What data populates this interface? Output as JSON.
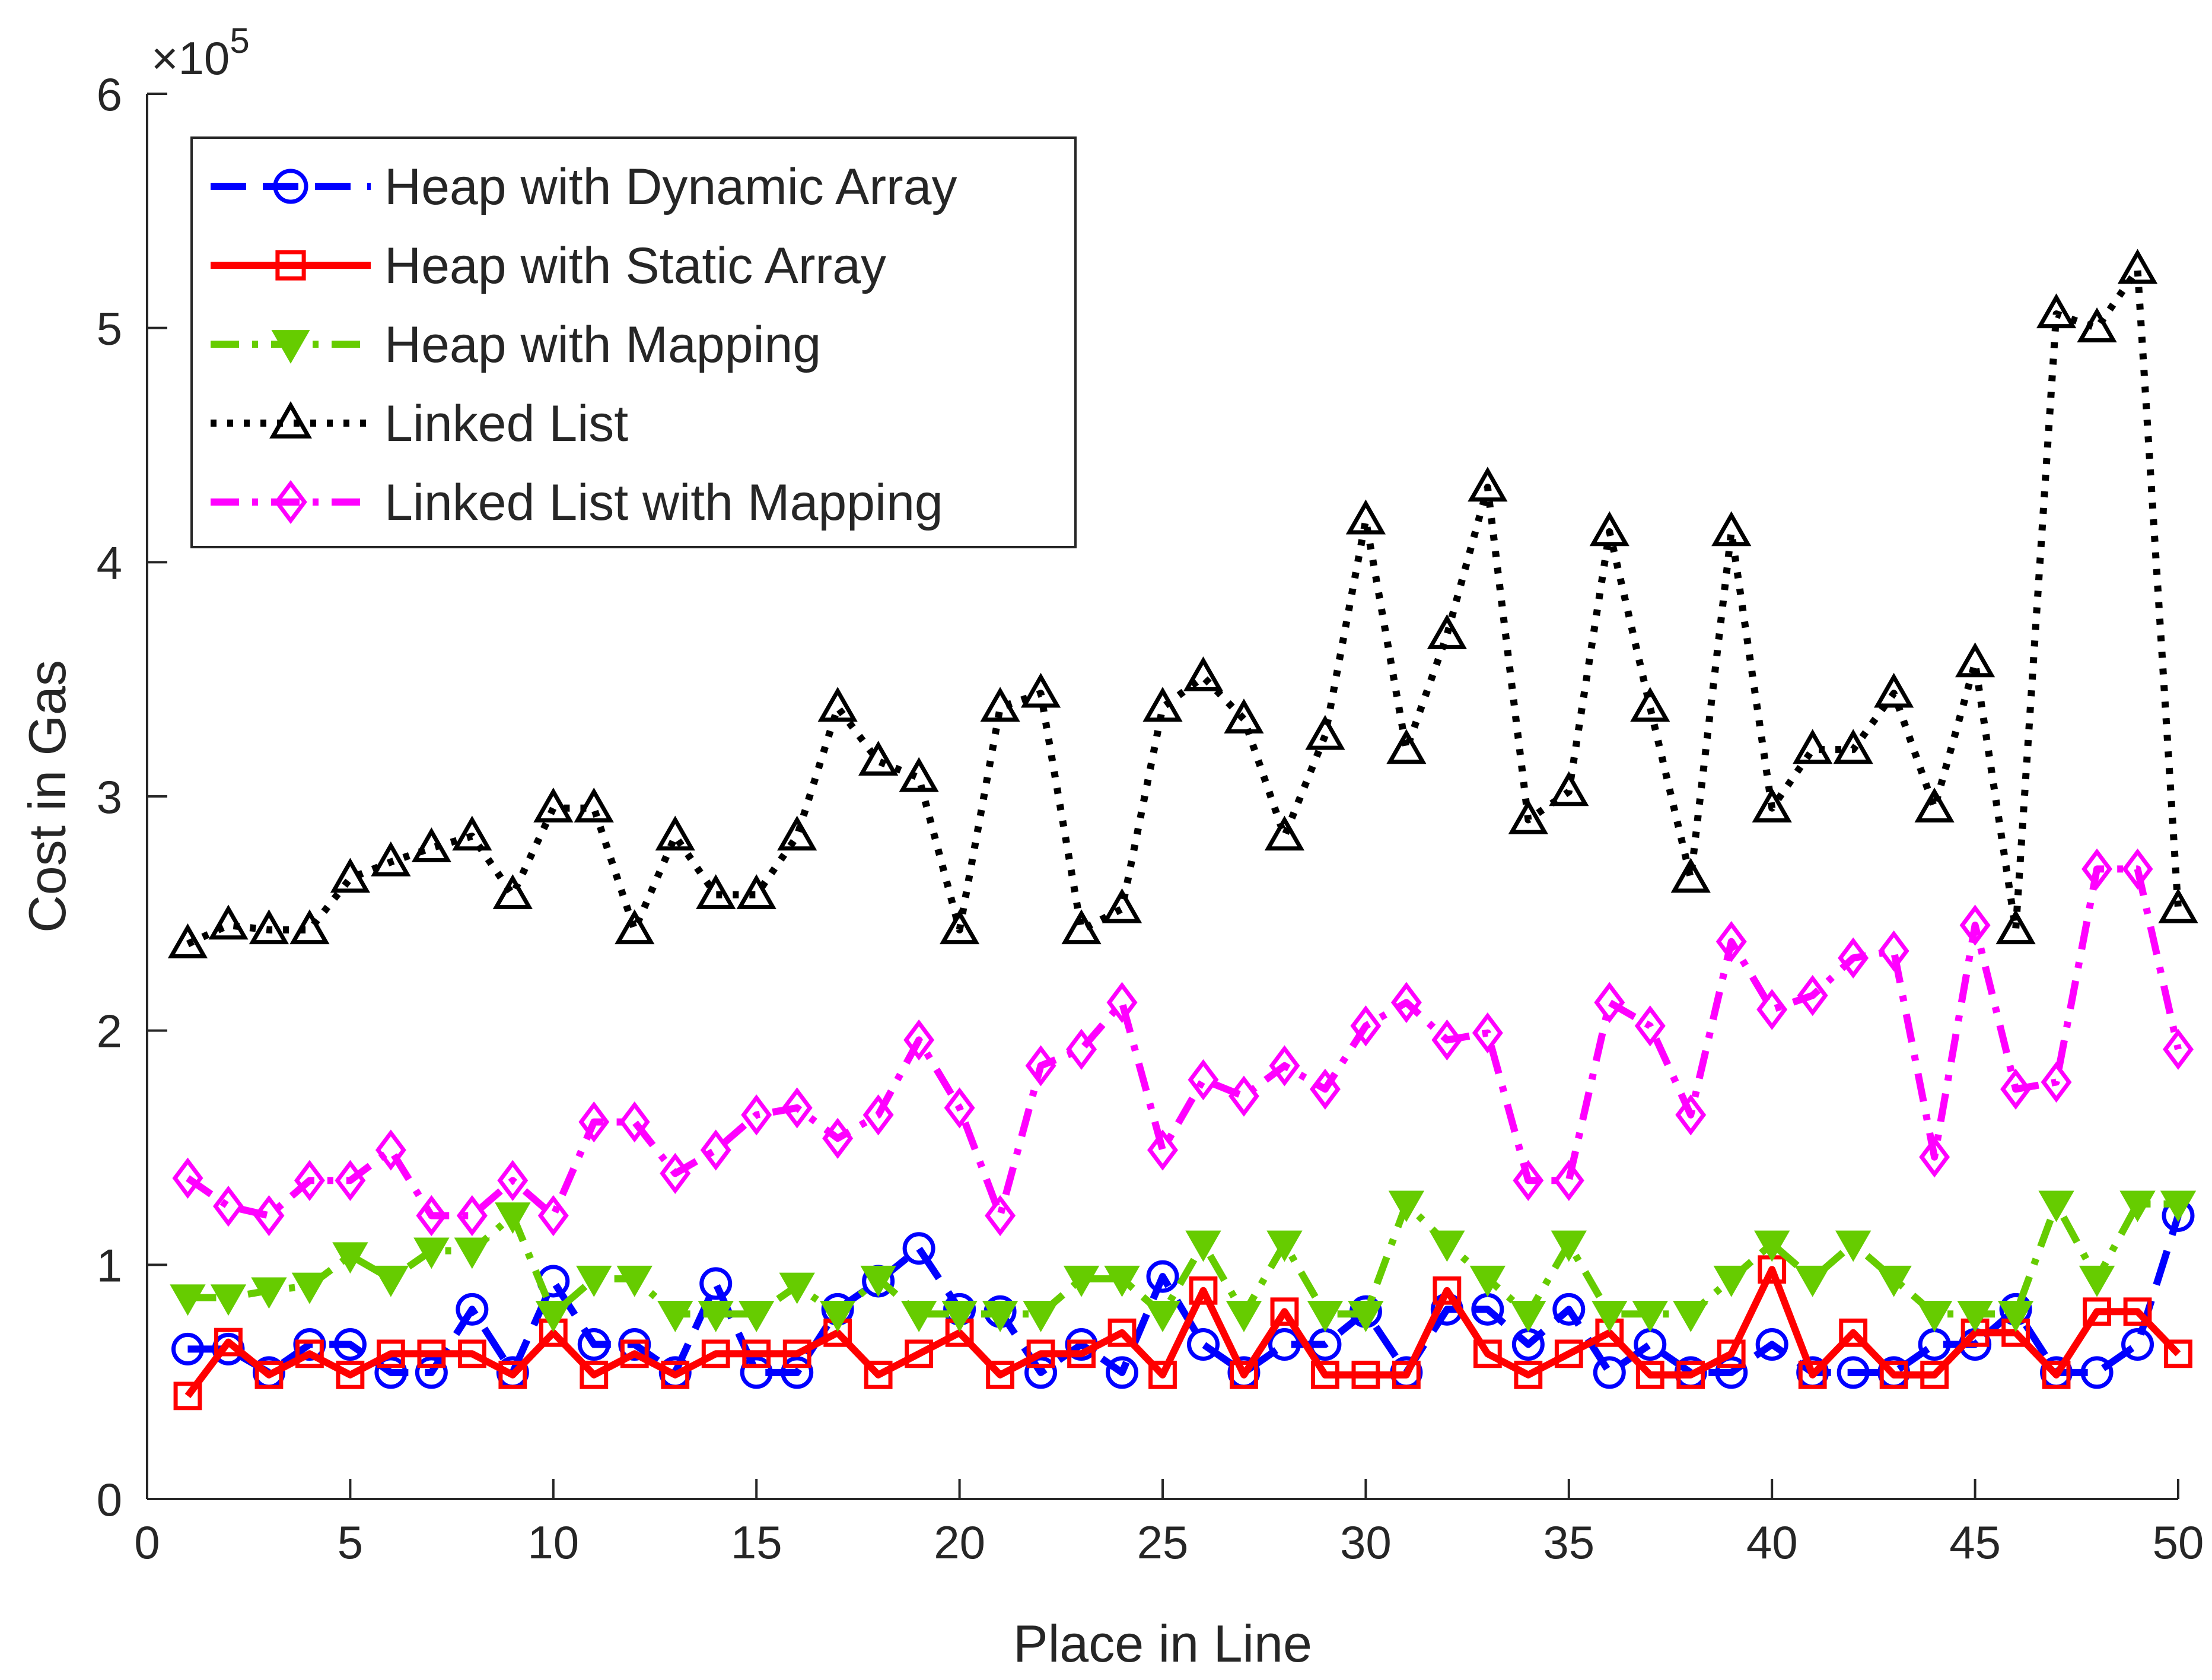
{
  "chart_data": {
    "type": "line",
    "title": "",
    "xlabel": "Place in Line",
    "ylabel": "Cost in Gas",
    "y_exponent_label": "×10",
    "y_exponent_power": "5",
    "xlim": [
      0,
      50
    ],
    "ylim": [
      0,
      600000
    ],
    "x_ticks": [
      0,
      5,
      10,
      15,
      20,
      25,
      30,
      35,
      40,
      45,
      50
    ],
    "y_ticks": [
      0,
      100000,
      200000,
      300000,
      400000,
      500000,
      600000
    ],
    "x_tick_labels": [
      "0",
      "5",
      "10",
      "15",
      "20",
      "25",
      "30",
      "35",
      "40",
      "45",
      "50"
    ],
    "y_tick_labels": [
      "0",
      "1",
      "2",
      "3",
      "4",
      "5",
      "6"
    ],
    "grid": false,
    "legend_position": "top-left",
    "x": [
      1,
      2,
      3,
      4,
      5,
      6,
      7,
      8,
      9,
      10,
      11,
      12,
      13,
      14,
      15,
      16,
      17,
      18,
      19,
      20,
      21,
      22,
      23,
      24,
      25,
      26,
      27,
      28,
      29,
      30,
      31,
      32,
      33,
      34,
      35,
      36,
      37,
      38,
      39,
      40,
      41,
      42,
      43,
      44,
      45,
      46,
      47,
      48,
      49,
      50
    ],
    "series": [
      {
        "name": "Heap with Dynamic Array",
        "color": "#0000ff",
        "line_style": "dashed",
        "marker": "circle",
        "values": [
          64000,
          64000,
          54000,
          66000,
          66000,
          54000,
          54000,
          81000,
          54000,
          93000,
          66000,
          66000,
          54000,
          92000,
          54000,
          54000,
          81000,
          93000,
          107000,
          81000,
          80000,
          54000,
          66000,
          54000,
          95000,
          66000,
          54000,
          66000,
          66000,
          80000,
          54000,
          81000,
          81000,
          66000,
          81000,
          54000,
          66000,
          54000,
          54000,
          66000,
          54000,
          54000,
          54000,
          66000,
          66000,
          81000,
          54000,
          54000,
          66000,
          121000
        ]
      },
      {
        "name": "Heap with Static Array",
        "color": "#ff0000",
        "line_style": "solid",
        "marker": "square",
        "values": [
          44000,
          67000,
          53000,
          62000,
          53000,
          62000,
          62000,
          62000,
          53000,
          71000,
          53000,
          62000,
          53000,
          62000,
          62000,
          62000,
          71000,
          53000,
          62000,
          71000,
          53000,
          62000,
          62000,
          71000,
          53000,
          89000,
          53000,
          80000,
          53000,
          53000,
          53000,
          89000,
          62000,
          53000,
          62000,
          71000,
          53000,
          53000,
          62000,
          98000,
          53000,
          71000,
          53000,
          53000,
          71000,
          71000,
          53000,
          80000,
          80000,
          62000
        ]
      },
      {
        "name": "Heap with Mapping",
        "color": "#66cc00",
        "line_style": "dashdot",
        "marker": "triangle-down",
        "values": [
          86000,
          86000,
          89000,
          91000,
          104000,
          94000,
          106000,
          106000,
          121000,
          79000,
          94000,
          94000,
          79000,
          79000,
          79000,
          91000,
          79000,
          94000,
          79000,
          79000,
          79000,
          79000,
          94000,
          94000,
          79000,
          109000,
          79000,
          109000,
          79000,
          79000,
          126000,
          109000,
          94000,
          79000,
          109000,
          79000,
          79000,
          79000,
          94000,
          109000,
          94000,
          109000,
          94000,
          79000,
          79000,
          79000,
          126000,
          94000,
          126000,
          126000
        ]
      },
      {
        "name": "Linked List",
        "color": "#000000",
        "line_style": "dotted",
        "marker": "triangle-up",
        "values": [
          237000,
          245000,
          243000,
          243000,
          265000,
          272000,
          278000,
          283000,
          258000,
          295000,
          295000,
          243000,
          283000,
          258000,
          258000,
          283000,
          338000,
          315000,
          308000,
          243000,
          338000,
          344000,
          243000,
          252000,
          338000,
          351000,
          333000,
          283000,
          326000,
          418000,
          320000,
          369000,
          432000,
          290000,
          302000,
          413000,
          338000,
          265000,
          413000,
          295000,
          320000,
          320000,
          344000,
          295000,
          357000,
          243000,
          506000,
          500000,
          525000,
          252000
        ]
      },
      {
        "name": "Linked List with Mapping",
        "color": "#ff00ff",
        "line_style": "dashdot",
        "marker": "diamond",
        "values": [
          137000,
          125000,
          121000,
          136000,
          136000,
          149000,
          121000,
          121000,
          136000,
          121000,
          161000,
          161000,
          139000,
          149000,
          164000,
          167000,
          154000,
          164000,
          196000,
          167000,
          121000,
          185000,
          192000,
          212000,
          149000,
          179000,
          172000,
          185000,
          175000,
          202000,
          212000,
          196000,
          199000,
          136000,
          136000,
          212000,
          202000,
          164000,
          238000,
          209000,
          215000,
          231000,
          234000,
          146000,
          245000,
          175000,
          178000,
          269000,
          269000,
          192000
        ]
      }
    ]
  }
}
